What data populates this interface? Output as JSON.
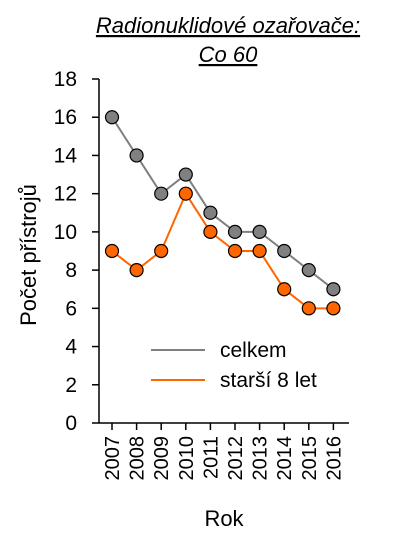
{
  "chart_data": {
    "type": "line",
    "title_lines": [
      "Radionuklidové ozařovače:",
      "Co 60"
    ],
    "xlabel": "Rok",
    "ylabel": "Počet přístrojů",
    "categories": [
      "2007",
      "2008",
      "2009",
      "2010",
      "2011",
      "2012",
      "2013",
      "2014",
      "2015",
      "2016"
    ],
    "ylim": [
      0,
      18
    ],
    "yticks": [
      0,
      2,
      4,
      6,
      8,
      10,
      12,
      14,
      16,
      18
    ],
    "grid": false,
    "legend_position": "bottom-right",
    "series": [
      {
        "name": "celkem",
        "color": "#7f7f7f",
        "marker_color": "#808080",
        "values": [
          16,
          14,
          12,
          13,
          11,
          10,
          10,
          9,
          8,
          7
        ]
      },
      {
        "name": "starší 8 let",
        "color": "#ff6600",
        "marker_color": "#ff6600",
        "values": [
          9,
          8,
          9,
          12,
          10,
          9,
          9,
          7,
          6,
          6
        ]
      }
    ]
  }
}
